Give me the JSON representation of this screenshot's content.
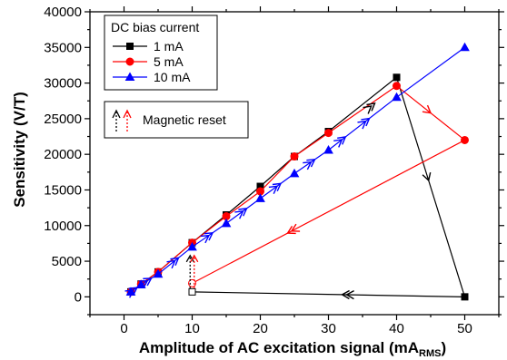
{
  "chart_data": {
    "type": "line",
    "xlabel": "Amplitude of AC excitation signal (mA",
    "xlabel_sub": "RMS",
    "xlabel_tail": ")",
    "ylabel": "Sensitivity (V/T)",
    "xlim": [
      -5,
      55
    ],
    "ylim": [
      -2500,
      40000
    ],
    "xticks": [
      0,
      10,
      20,
      30,
      40,
      50
    ],
    "yticks": [
      0,
      5000,
      10000,
      15000,
      20000,
      25000,
      30000,
      35000,
      40000
    ],
    "grid": false,
    "legend": {
      "title": "DC bias current",
      "placement": "top-left",
      "entries": [
        "1 mA",
        "5 mA",
        "10 mA"
      ]
    },
    "reset_box": {
      "label": "Magnetic reset",
      "placement": "upper-left"
    },
    "series": [
      {
        "name": "1 mA",
        "color": "#000000",
        "marker": "square",
        "x": [
          1,
          2.5,
          5,
          10,
          15,
          20,
          25,
          30,
          40,
          50,
          10
        ],
        "y": [
          700,
          1800,
          3500,
          7600,
          11500,
          15500,
          19700,
          23200,
          30800,
          0,
          700
        ],
        "hollow_index": 10
      },
      {
        "name": "5 mA",
        "color": "#ff0000",
        "marker": "circle",
        "x": [
          1,
          2.5,
          5,
          10,
          15,
          20,
          25,
          30,
          40,
          50,
          10
        ],
        "y": [
          700,
          1800,
          3500,
          7600,
          11300,
          14800,
          19700,
          23000,
          29600,
          22000,
          1900
        ],
        "hollow_index": 10
      },
      {
        "name": "10 mA",
        "color": "#0000ff",
        "marker": "triangle",
        "x": [
          1,
          2.5,
          5,
          10,
          15,
          20,
          25,
          30,
          40,
          50
        ],
        "y": [
          700,
          1700,
          3200,
          7000,
          10300,
          13800,
          17300,
          20600,
          28000,
          35000
        ]
      }
    ],
    "reset_markers": [
      {
        "series": "1 mA",
        "x": 9.7,
        "y_from": 1200,
        "y_to": 5800
      },
      {
        "series": "5 mA",
        "x": 10.3,
        "y_from": 1200,
        "y_to": 5800
      }
    ]
  }
}
